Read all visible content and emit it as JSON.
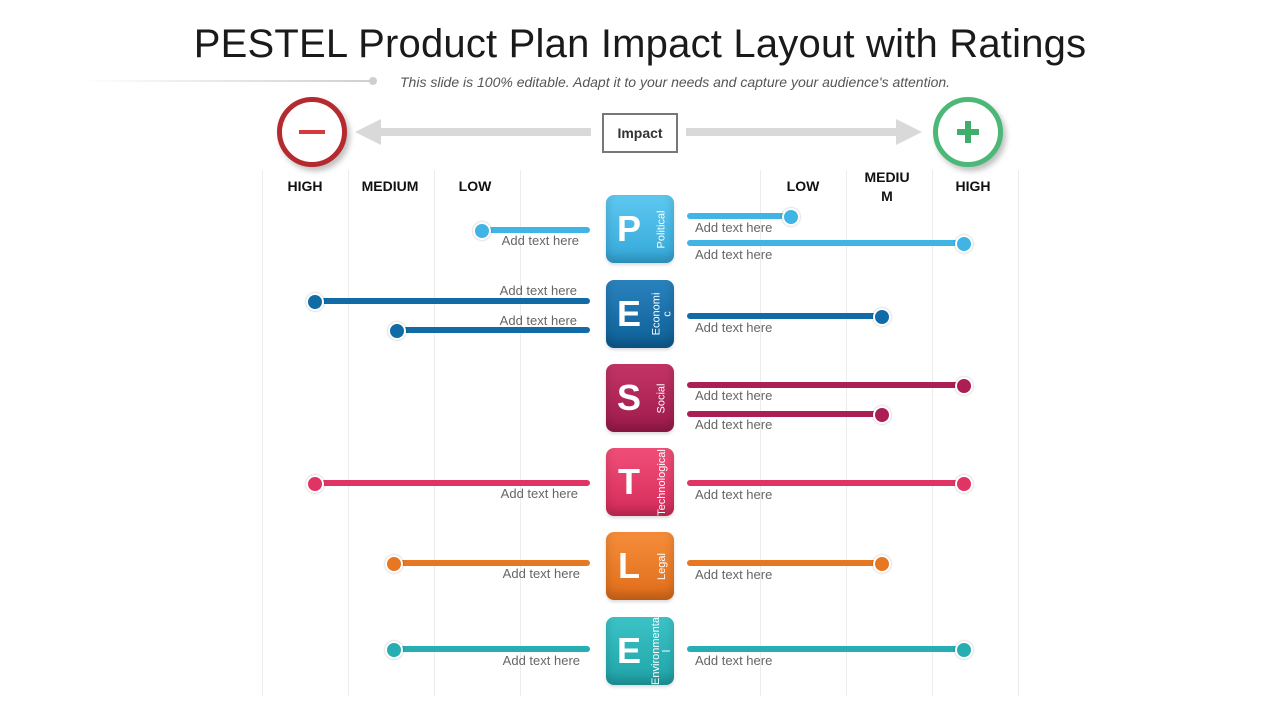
{
  "title": "PESTEL Product Plan Impact Layout with Ratings",
  "subtitle": "This slide is 100% editable.  Adapt it to your needs and capture your audience's attention.",
  "impact_label": "Impact",
  "negative_icon": "minus-icon",
  "positive_icon": "plus-icon",
  "scale_left": [
    "HIGH",
    "MEDIUM",
    "LOW"
  ],
  "scale_right": [
    "LOW",
    "MEDIU\nM",
    "HIGH"
  ],
  "placeholder": "Add text here",
  "colors": {
    "negative": "#b52a2e",
    "positive": "#4cb877",
    "political": "#40b4e5",
    "economic": "#116ba7",
    "social": "#ab1f54",
    "technological": "#e03564",
    "legal": "#e87722",
    "environmental": "#27aeb3"
  },
  "factors": [
    {
      "letter": "P",
      "name": "Political"
    },
    {
      "letter": "E",
      "name": "Economi\nc"
    },
    {
      "letter": "S",
      "name": "Social"
    },
    {
      "letter": "T",
      "name": "Technological"
    },
    {
      "letter": "L",
      "name": "Legal"
    },
    {
      "letter": "E",
      "name": "Environmenta\nl"
    }
  ]
}
